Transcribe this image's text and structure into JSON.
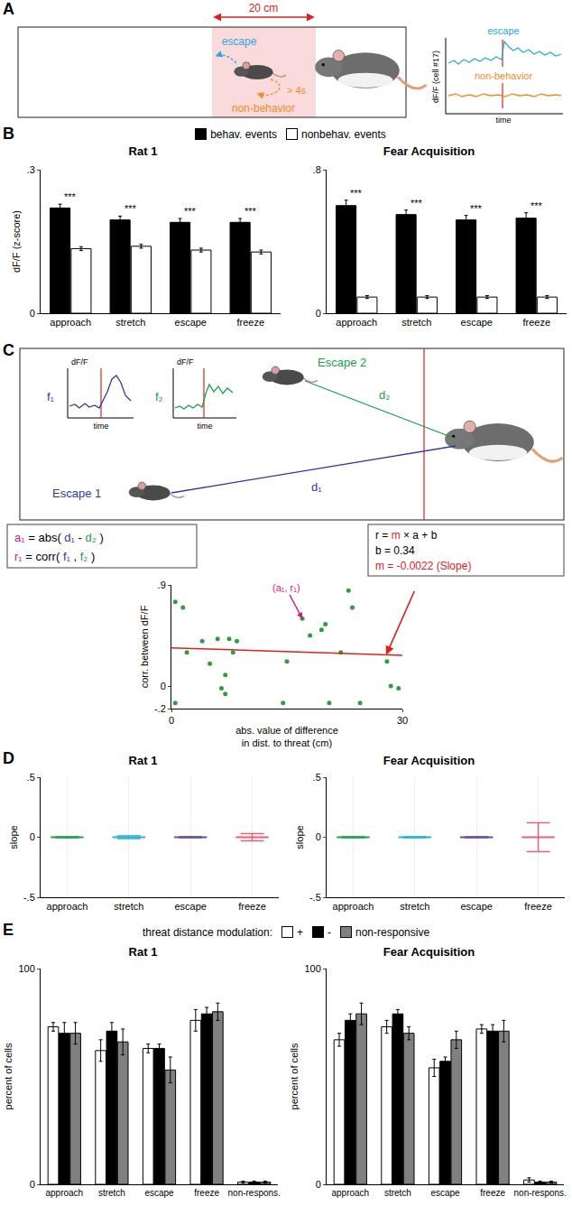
{
  "panel_A": {
    "letter": "A",
    "scale_label": "20 cm",
    "escape_label": "escape",
    "duration_label": "> 4s",
    "nonbehavior_label": "non-behavior",
    "trace_titles": [
      "escape",
      "non-behavior"
    ],
    "trace_ylabel": "dF/F (cell #17)",
    "trace_xlabel": "time"
  },
  "panel_C": {
    "letter": "C",
    "escape1": "Escape 1",
    "escape2": "Escape 2",
    "d1": "d₁",
    "d2": "d₂",
    "f1": "f₁",
    "f2": "f₂",
    "inset_ylabel": "dF/F",
    "inset_xlabel": "time",
    "formulas_left": [
      [
        {
          "text": "a₁",
          "color": "#d4157f"
        },
        {
          "text": " = abs( "
        },
        {
          "text": "d₁",
          "color": "#2b3a9e"
        },
        {
          "text": " - "
        },
        {
          "text": "d₂",
          "color": "#1a9e4a"
        },
        {
          "text": " )"
        }
      ],
      [
        {
          "text": "r₁",
          "color": "#d4157f"
        },
        {
          "text": " = corr( "
        },
        {
          "text": "f₁",
          "color": "#2b3a9e"
        },
        {
          "text": " , "
        },
        {
          "text": "f₂",
          "color": "#1a9e4a"
        },
        {
          "text": " )"
        }
      ]
    ],
    "formulas_right": [
      [
        {
          "text": "r = "
        },
        {
          "text": "m",
          "color": "#e0201b"
        },
        {
          "text": " × a + b"
        }
      ],
      [
        {
          "text": "b = 0.34"
        }
      ],
      [
        {
          "text": "m = -0.0022 (Slope)",
          "color": "#e0201b"
        }
      ]
    ]
  },
  "chart_data": [
    {
      "panel": "B",
      "type": "bar",
      "title": "Rat 1",
      "legend": "top",
      "categories": [
        "approach",
        "stretch",
        "escape",
        "freeze"
      ],
      "series": [
        {
          "name": "behav. events",
          "color": "#000000",
          "values": [
            0.22,
            0.195,
            0.19,
            0.19
          ],
          "errors": [
            0.008,
            0.008,
            0.008,
            0.008
          ]
        },
        {
          "name": "nonbehav. events",
          "color": "#ffffff",
          "values": [
            0.135,
            0.14,
            0.132,
            0.128
          ],
          "errors": [
            0.004,
            0.004,
            0.004,
            0.004
          ]
        }
      ],
      "y_label": "dF/F (z-score)",
      "ylim": [
        0,
        0.3
      ],
      "yticks": [
        0,
        {
          "value": 0.3,
          "label": ".3"
        }
      ],
      "annotations": [
        {
          "category": "approach",
          "text": "***"
        },
        {
          "category": "stretch",
          "text": "***"
        },
        {
          "category": "escape",
          "text": "***"
        },
        {
          "category": "freeze",
          "text": "***"
        }
      ]
    },
    {
      "type": "bar",
      "title": "Fear Acquisition",
      "categories": [
        "approach",
        "stretch",
        "escape",
        "freeze"
      ],
      "series": [
        {
          "name": "behav. events",
          "color": "#000000",
          "values": [
            0.6,
            0.55,
            0.52,
            0.53
          ],
          "errors": [
            0.03,
            0.025,
            0.025,
            0.03
          ]
        },
        {
          "name": "nonbehav. events",
          "color": "#ffffff",
          "values": [
            0.09,
            0.09,
            0.09,
            0.09
          ],
          "errors": [
            0.008,
            0.008,
            0.008,
            0.008
          ]
        }
      ],
      "ylim": [
        0,
        0.8
      ],
      "yticks": [
        0,
        {
          "value": 0.8,
          "label": ".8"
        }
      ],
      "annotations": [
        {
          "category": "approach",
          "text": "***"
        },
        {
          "category": "stretch",
          "text": "***"
        },
        {
          "category": "escape",
          "text": "***"
        },
        {
          "category": "freeze",
          "text": "***"
        }
      ]
    },
    {
      "type": "scatter",
      "color": "#2e9e3e",
      "marker": "circle",
      "x": [
        0.5,
        0.5,
        1.5,
        2,
        4,
        5,
        6,
        6.5,
        7,
        7,
        7.5,
        8,
        8.5,
        14.5,
        15,
        17,
        18,
        19.5,
        20,
        20.5,
        22,
        23,
        23.5,
        24.5,
        28,
        28.5,
        29.5
      ],
      "values": [
        0.75,
        -0.15,
        0.7,
        0.3,
        0.4,
        0.2,
        0.42,
        -0.02,
        0.1,
        -0.07,
        0.42,
        0.3,
        0.4,
        -0.15,
        0.22,
        0.6,
        0.45,
        0.5,
        0.55,
        -0.15,
        0.3,
        0.85,
        0.7,
        -0.15,
        0.22,
        0,
        -0.02
      ],
      "x_label": "abs. value of difference in dist. to threat (cm)",
      "y_label": "corr. between dF/F",
      "xlim": [
        0,
        30
      ],
      "xticks": [
        0,
        30
      ],
      "ylim": [
        -0.2,
        0.9
      ],
      "yticks": [
        {
          "value": -0.2,
          "label": "-.2"
        },
        0,
        {
          "value": 0.9,
          "label": ".9"
        }
      ],
      "fit": {
        "m": -0.0022,
        "b": 0.34,
        "color": "#e0201b"
      },
      "annotations": [
        {
          "x": 17,
          "y": 0.6,
          "text": "(a₁, r₁)",
          "color": "#d4157f"
        }
      ]
    },
    {
      "panel": "D",
      "type": "errorbar",
      "title": "Rat 1",
      "marker": "line",
      "categories": [
        "approach",
        "stretch",
        "escape",
        "freeze"
      ],
      "values": [
        0,
        0,
        0,
        0
      ],
      "errors": [
        0.004,
        0.012,
        0.004,
        0.03
      ],
      "colors": [
        "#1fa34a",
        "#27b3d6",
        "#6b4fa0",
        "#e8607a"
      ],
      "y_label": "slope",
      "ylim": [
        -0.5,
        0.5
      ],
      "yticks": [
        {
          "value": -0.5,
          "label": "-.5"
        },
        0,
        {
          "value": 0.5,
          "label": ".5"
        }
      ]
    },
    {
      "type": "errorbar",
      "title": "Fear Acquisition",
      "marker": "line",
      "categories": [
        "approach",
        "stretch",
        "escape",
        "freeze"
      ],
      "values": [
        0,
        0,
        0,
        0
      ],
      "errors": [
        0.004,
        0.004,
        0.004,
        0.12
      ],
      "colors": [
        "#1fa34a",
        "#27b3d6",
        "#6b4fa0",
        "#e8607a"
      ],
      "y_label": "slope",
      "ylim": [
        -0.5,
        0.5
      ],
      "yticks": [
        {
          "value": -0.5,
          "label": "-.5"
        },
        0,
        {
          "value": 0.5,
          "label": ".5"
        }
      ]
    },
    {
      "panel": "E",
      "type": "bar",
      "title": "Rat 1",
      "legend": "top",
      "legend_title": "threat distance modulation:",
      "categories": [
        "approach",
        "stretch",
        "escape",
        "freeze",
        "non-respons."
      ],
      "series": [
        {
          "name": "+",
          "color": "#ffffff",
          "values": [
            73,
            62,
            63,
            76,
            1
          ],
          "errors": [
            2,
            5,
            2,
            5,
            0.5
          ]
        },
        {
          "name": "-",
          "color": "#000000",
          "values": [
            70,
            71,
            63,
            79,
            1
          ],
          "errors": [
            5,
            4,
            2,
            3,
            0.5
          ]
        },
        {
          "name": "non-responsive",
          "color": "#808080",
          "values": [
            70,
            66,
            53,
            80,
            1
          ],
          "errors": [
            5,
            6,
            6,
            4,
            0.5
          ]
        }
      ],
      "y_label": "percent of cells",
      "ylim": [
        0,
        100
      ],
      "yticks": [
        0,
        100
      ]
    },
    {
      "type": "bar",
      "title": "Fear Acquisition",
      "categories": [
        "approach",
        "stretch",
        "escape",
        "freeze",
        "non-respons."
      ],
      "series": [
        {
          "name": "+",
          "color": "#ffffff",
          "values": [
            67,
            73,
            54,
            72,
            2
          ],
          "errors": [
            3,
            3,
            4,
            2,
            1
          ]
        },
        {
          "name": "-",
          "color": "#000000",
          "values": [
            76,
            79,
            57,
            71,
            1
          ],
          "errors": [
            3,
            2,
            2,
            3,
            0.5
          ]
        },
        {
          "name": "non-responsive",
          "color": "#808080",
          "values": [
            79,
            70,
            67,
            71,
            1
          ],
          "errors": [
            5,
            3,
            4,
            5,
            0.5
          ]
        }
      ],
      "y_label": "percent of cells",
      "ylim": [
        0,
        100
      ],
      "yticks": [
        0,
        100
      ]
    }
  ]
}
